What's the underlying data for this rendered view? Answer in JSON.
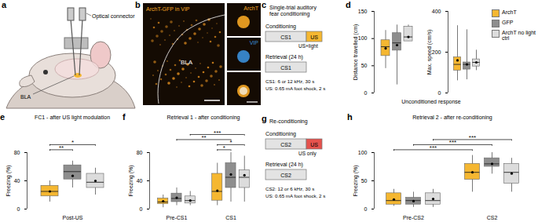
{
  "figure": {
    "panel_a": {
      "letter": "a",
      "labels": [
        "Optical connector",
        "BLA"
      ]
    },
    "panel_b": {
      "letter": "b",
      "title": "ArchT-GFP in VIP",
      "region": "BLA",
      "insets": [
        {
          "label": "ArchT",
          "color": "#f5a623"
        },
        {
          "label": "VIP",
          "color": "#3a8fd9"
        }
      ]
    },
    "panel_c": {
      "letter": "c",
      "title": "Single-trial auditory fear conditioning",
      "us_color": "#f5b731",
      "rows": [
        {
          "label": "Conditioning",
          "boxes": [
            "CS1",
            "US"
          ],
          "note": "US+light"
        },
        {
          "label": "Retrieval (24 h)",
          "boxes": [
            "CS1"
          ]
        }
      ],
      "footnotes": [
        "CS1: 6 or 12 kHz, 30 s",
        "US: 0.65 mA foot shock, 2 s"
      ]
    },
    "panel_d": {
      "letter": "d",
      "x_label": "Unconditioned response"
    },
    "panel_g": {
      "letter": "g",
      "title": "Re-conditioning",
      "us_color": "#e5524d",
      "rows": [
        {
          "label": "Conditioning",
          "boxes": [
            "CS2",
            "US"
          ],
          "note": "US only"
        },
        {
          "label": "Retrieval (24 h)",
          "boxes": [
            "CS2"
          ]
        }
      ],
      "footnotes": [
        "CS2: 12 or 6 kHz, 30 s",
        "US: 0.65 mA foot shock, 2 s"
      ]
    }
  },
  "chart_data": [
    {
      "panel": "d",
      "type": "box",
      "y_label": "Distance travelled (cm)",
      "ylim": [
        0,
        150
      ],
      "yticks": [
        0,
        50,
        100,
        150
      ],
      "tick_labels": "y",
      "legend": "right",
      "categories": [
        null
      ],
      "series": [
        {
          "name": "ArchT",
          "color": "#f5b731",
          "boxes": [
            {
              "min": 45,
              "q1": 68,
              "median": 85,
              "q3": 97,
              "max": 115,
              "mean": 82
            }
          ]
        },
        {
          "name": "GFP",
          "color": "#8e8e8e",
          "boxes": [
            {
              "min": 15,
              "q1": 78,
              "median": 92,
              "q3": 110,
              "max": 125,
              "mean": 88
            }
          ]
        },
        {
          "name": "ArchT no light ctrl",
          "color": "#dcdcdc",
          "boxes": [
            {
              "min": 95,
              "q1": 95,
              "median": 103,
              "q3": 122,
              "max": 125,
              "mean": 103
            }
          ]
        }
      ]
    },
    {
      "panel": "d",
      "type": "box",
      "y_label": "Max. speed (cm/s)",
      "ylim": [
        0,
        400
      ],
      "yticks": [
        0,
        200,
        400
      ],
      "tick_labels": "y",
      "categories": [
        null
      ],
      "series": [
        {
          "name": "ArchT",
          "color": "#f5b731",
          "boxes": [
            {
              "min": 60,
              "q1": 110,
              "median": 140,
              "q3": 175,
              "max": 330,
              "mean": 160
            }
          ]
        },
        {
          "name": "GFP",
          "color": "#8e8e8e",
          "boxes": [
            {
              "min": 65,
              "q1": 115,
              "median": 140,
              "q3": 150,
              "max": 310,
              "mean": 140
            }
          ]
        },
        {
          "name": "ArchT no light ctrl",
          "color": "#dcdcdc",
          "boxes": [
            {
              "min": 110,
              "q1": 130,
              "median": 150,
              "q3": 165,
              "max": 210,
              "mean": 150
            }
          ]
        }
      ]
    },
    {
      "panel": "e",
      "type": "box",
      "title": "FC1 - after US light modulation",
      "y_label": "Freezing (%)",
      "ylim": [
        0,
        80
      ],
      "yticks": [
        0,
        40,
        80
      ],
      "categories": [
        "Post-US"
      ],
      "series": [
        {
          "name": "ArchT",
          "color": "#f5b731",
          "boxes": [
            {
              "min": 10,
              "q1": 18,
              "median": 25,
              "q3": 33,
              "max": 40,
              "mean": 25
            }
          ]
        },
        {
          "name": "GFP",
          "color": "#8e8e8e",
          "boxes": [
            {
              "min": 30,
              "q1": 42,
              "median": 53,
              "q3": 62,
              "max": 68,
              "mean": 47
            }
          ]
        },
        {
          "name": "ArchT no light ctrl",
          "color": "#dcdcdc",
          "boxes": [
            {
              "min": 20,
              "q1": 30,
              "median": 38,
              "q3": 50,
              "max": 58,
              "mean": 40
            }
          ]
        }
      ],
      "significance": [
        {
          "from": {
            "category": "Post-US",
            "series": "ArchT"
          },
          "to": {
            "category": "Post-US",
            "series": "GFP"
          },
          "label": "**"
        },
        {
          "from": {
            "category": "Post-US",
            "series": "ArchT"
          },
          "to": {
            "category": "Post-US",
            "series": "ArchT no light ctrl"
          },
          "label": "*"
        }
      ]
    },
    {
      "panel": "f",
      "type": "box",
      "title": "Retrieval 1 - after conditioning",
      "y_label": "Freezing (%)",
      "ylim": [
        0,
        80
      ],
      "yticks": [
        0,
        40,
        80
      ],
      "categories": [
        "Pre-CS1",
        "CS1"
      ],
      "series": [
        {
          "name": "ArchT",
          "color": "#f5b731",
          "boxes": [
            {
              "min": 2,
              "q1": 7,
              "median": 10,
              "q3": 15,
              "max": 20,
              "mean": 11
            },
            {
              "min": 5,
              "q1": 12,
              "median": 25,
              "q3": 50,
              "max": 65,
              "mean": 26
            }
          ]
        },
        {
          "name": "GFP",
          "color": "#8e8e8e",
          "boxes": [
            {
              "min": 5,
              "q1": 10,
              "median": 15,
              "q3": 22,
              "max": 30,
              "mean": 16
            },
            {
              "min": 10,
              "q1": 30,
              "median": 45,
              "q3": 65,
              "max": 80,
              "mean": 49
            }
          ]
        },
        {
          "name": "ArchT no light ctrl",
          "color": "#dcdcdc",
          "boxes": [
            {
              "min": 5,
              "q1": 8,
              "median": 12,
              "q3": 18,
              "max": 25,
              "mean": 12
            },
            {
              "min": 10,
              "q1": 30,
              "median": 45,
              "q3": 55,
              "max": 75,
              "mean": 48
            }
          ]
        }
      ],
      "significance": [
        {
          "from": {
            "category": "CS1",
            "series": "ArchT"
          },
          "to": {
            "category": "CS1",
            "series": "GFP"
          },
          "label": "*"
        },
        {
          "from": {
            "category": "CS1",
            "series": "ArchT"
          },
          "to": {
            "category": "CS1",
            "series": "ArchT no light ctrl"
          },
          "label": "*"
        },
        {
          "from": {
            "category": "Pre-CS1",
            "series": "GFP"
          },
          "to": {
            "category": "CS1",
            "series": "GFP"
          },
          "label": "**"
        },
        {
          "from": {
            "category": "Pre-CS1",
            "series": "ArchT no light ctrl"
          },
          "to": {
            "category": "CS1",
            "series": "ArchT no light ctrl"
          },
          "label": "***"
        }
      ]
    },
    {
      "panel": "h",
      "type": "box",
      "title": "Retrieval 2 - after re-conditioning",
      "y_label": "Freezing (%)",
      "ylim": [
        0,
        100
      ],
      "yticks": [
        0,
        50,
        100
      ],
      "categories": [
        "Pre-CS2",
        "CS2"
      ],
      "series": [
        {
          "name": "ArchT",
          "color": "#f5b731",
          "boxes": [
            {
              "min": 5,
              "q1": 8,
              "median": 15,
              "q3": 28,
              "max": 35,
              "mean": 17
            },
            {
              "min": 30,
              "q1": 52,
              "median": 65,
              "q3": 80,
              "max": 95,
              "mean": 65
            }
          ]
        },
        {
          "name": "GFP",
          "color": "#8e8e8e",
          "boxes": [
            {
              "min": 3,
              "q1": 8,
              "median": 15,
              "q3": 20,
              "max": 30,
              "mean": 14
            },
            {
              "min": 62,
              "q1": 75,
              "median": 80,
              "q3": 90,
              "max": 100,
              "mean": 80
            }
          ]
        },
        {
          "name": "ArchT no light ctrl",
          "color": "#dcdcdc",
          "boxes": [
            {
              "min": 3,
              "q1": 8,
              "median": 15,
              "q3": 28,
              "max": 35,
              "mean": 18
            },
            {
              "min": 30,
              "q1": 45,
              "median": 65,
              "q3": 80,
              "max": 90,
              "mean": 63
            }
          ]
        }
      ],
      "significance": [
        {
          "from": {
            "category": "Pre-CS2",
            "series": "ArchT"
          },
          "to": {
            "category": "CS2",
            "series": "ArchT"
          },
          "label": "***"
        },
        {
          "from": {
            "category": "Pre-CS2",
            "series": "GFP"
          },
          "to": {
            "category": "CS2",
            "series": "GFP"
          },
          "label": "***"
        },
        {
          "from": {
            "category": "Pre-CS2",
            "series": "ArchT no light ctrl"
          },
          "to": {
            "category": "CS2",
            "series": "ArchT no light ctrl"
          },
          "label": "***"
        }
      ]
    }
  ]
}
